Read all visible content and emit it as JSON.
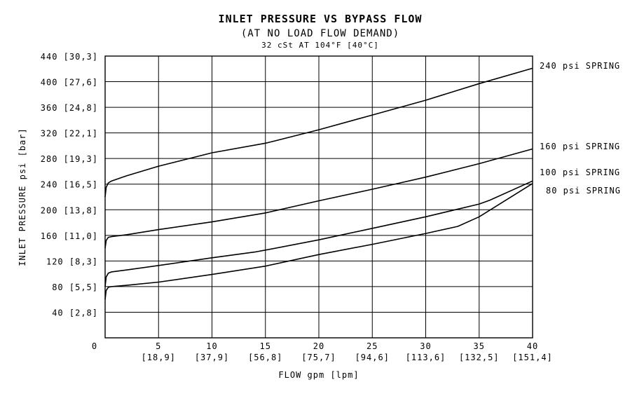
{
  "chart_data": {
    "type": "line",
    "title": "INLET PRESSURE VS BYPASS FLOW",
    "subtitle": "(AT NO LOAD FLOW DEMAND)",
    "note": "32 cSt AT 104°F [40°C]",
    "xlabel": "FLOW gpm [lpm]",
    "ylabel": "INLET PRESSURE psi [bar]",
    "xlim": [
      0,
      40
    ],
    "ylim": [
      0,
      440
    ],
    "grid": true,
    "x_ticks": [
      {
        "value": 0,
        "label": "0",
        "sub": ""
      },
      {
        "value": 5,
        "label": "5",
        "sub": "[18,9]"
      },
      {
        "value": 10,
        "label": "10",
        "sub": "[37,9]"
      },
      {
        "value": 15,
        "label": "15",
        "sub": "[56,8]"
      },
      {
        "value": 20,
        "label": "20",
        "sub": "[75,7]"
      },
      {
        "value": 25,
        "label": "25",
        "sub": "[94,6]"
      },
      {
        "value": 30,
        "label": "30",
        "sub": "[113,6]"
      },
      {
        "value": 35,
        "label": "35",
        "sub": "[132,5]"
      },
      {
        "value": 40,
        "label": "40",
        "sub": "[151,4]"
      }
    ],
    "y_ticks": [
      {
        "value": 40,
        "label": "40 [2,8]"
      },
      {
        "value": 80,
        "label": "80 [5,5]"
      },
      {
        "value": 120,
        "label": "120 [8,3]"
      },
      {
        "value": 160,
        "label": "160 [11,0]"
      },
      {
        "value": 200,
        "label": "200 [13,8]"
      },
      {
        "value": 240,
        "label": "240 [16,5]"
      },
      {
        "value": 280,
        "label": "280 [19,3]"
      },
      {
        "value": 320,
        "label": "320 [22,1]"
      },
      {
        "value": 360,
        "label": "360 [24,8]"
      },
      {
        "value": 400,
        "label": "400 [27,6]"
      },
      {
        "value": 440,
        "label": "440 [30,3]"
      }
    ],
    "series": [
      {
        "name": "240 psi SPRING",
        "x": [
          0,
          0.1,
          0.3,
          0.6,
          2,
          5,
          10,
          15,
          16,
          20,
          25,
          30,
          35,
          40
        ],
        "y": [
          220,
          235,
          242,
          245,
          253,
          268,
          289,
          304,
          308,
          325,
          348,
          371,
          397,
          421
        ]
      },
      {
        "name": "160 psi SPRING",
        "x": [
          0,
          0.1,
          0.3,
          0.6,
          2,
          5,
          10,
          15,
          20,
          25,
          30,
          35,
          40
        ],
        "y": [
          140,
          152,
          157,
          158,
          161,
          169,
          181,
          195,
          214,
          232,
          251,
          272,
          295
        ]
      },
      {
        "name": "100 psi SPRING",
        "x": [
          0,
          0.1,
          0.3,
          0.6,
          2,
          5,
          10,
          14,
          15,
          20,
          25,
          30,
          35,
          36,
          40
        ],
        "y": [
          80,
          95,
          101,
          103,
          106,
          113,
          125,
          134,
          137,
          153,
          171,
          189,
          209,
          215,
          245
        ]
      },
      {
        "name": "80 psi SPRING",
        "x": [
          0,
          0.1,
          0.3,
          0.6,
          2,
          5,
          10,
          15,
          20,
          25,
          30,
          33,
          35,
          40
        ],
        "y": [
          60,
          74,
          79,
          80,
          82,
          87,
          99,
          112,
          130,
          146,
          163,
          174,
          189,
          241
        ]
      }
    ]
  }
}
